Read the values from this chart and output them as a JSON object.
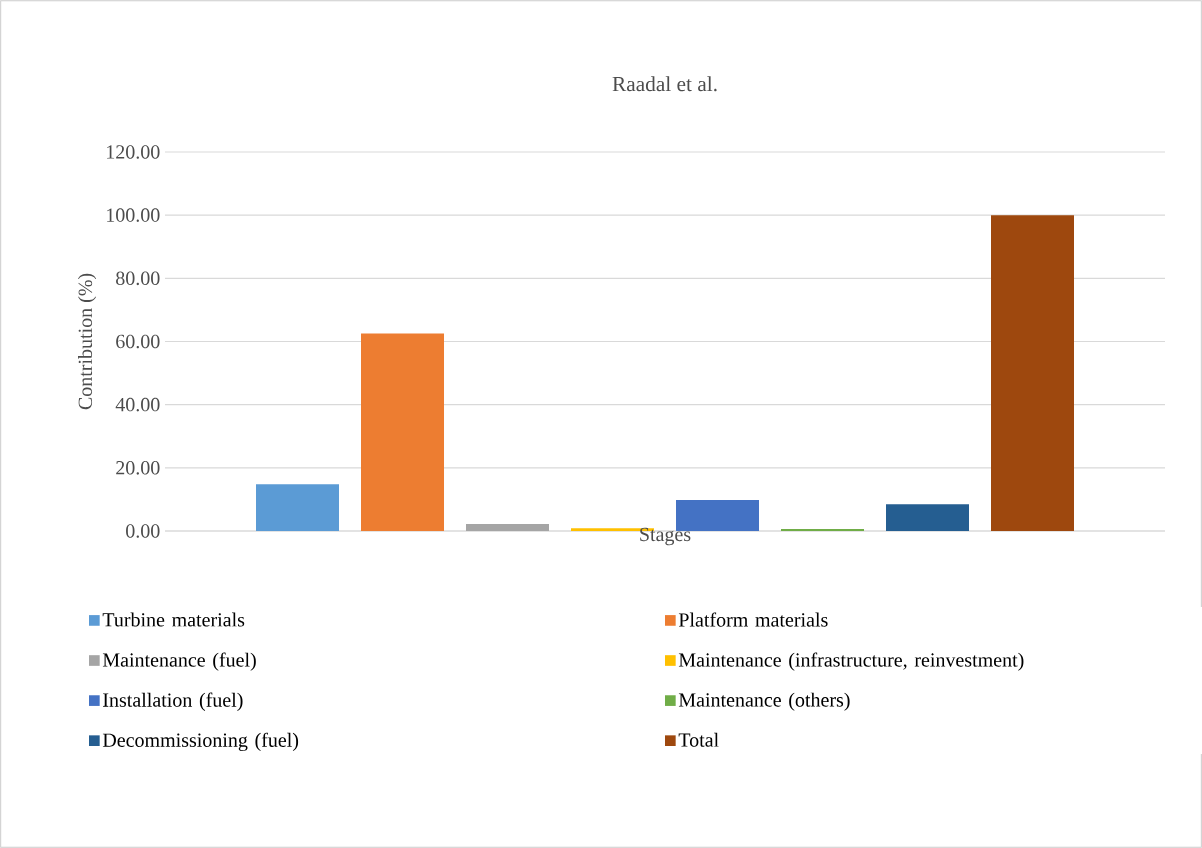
{
  "chart_data": {
    "type": "bar",
    "title": "Raadal et al.",
    "xlabel": "Stages",
    "ylabel": "Contribution (%)",
    "categories": [
      null
    ],
    "series": [
      {
        "name": "Turbine materials",
        "color": "#5b9bd5",
        "values": [
          14.8
        ]
      },
      {
        "name": "Platform materials",
        "color": "#ed7d31",
        "values": [
          62.5
        ]
      },
      {
        "name": "Maintenance (fuel)",
        "color": "#a5a5a5",
        "values": [
          2.2
        ]
      },
      {
        "name": "Maintenance (infrastructure, reinvestment)",
        "color": "#ffc000",
        "values": [
          0.9
        ]
      },
      {
        "name": "Installation (fuel)",
        "color": "#4472c4",
        "values": [
          9.8
        ]
      },
      {
        "name": "Maintenance (others)",
        "color": "#70ad47",
        "values": [
          0.6
        ]
      },
      {
        "name": "Decommissioning (fuel)",
        "color": "#255e91",
        "values": [
          8.5
        ]
      },
      {
        "name": "Total",
        "color": "#9e480e",
        "values": [
          100
        ]
      }
    ],
    "ylim": [
      0,
      120
    ],
    "yticks": [
      {
        "value": 0,
        "label": "0.00"
      },
      {
        "value": 20,
        "label": "20.00"
      },
      {
        "value": 40,
        "label": "40.00"
      },
      {
        "value": 60,
        "label": "60.00"
      },
      {
        "value": 80,
        "label": "80.00"
      },
      {
        "value": 100,
        "label": "100.00"
      },
      {
        "value": 120,
        "label": "120.00"
      }
    ],
    "grid": "y",
    "legend": "bottom"
  }
}
